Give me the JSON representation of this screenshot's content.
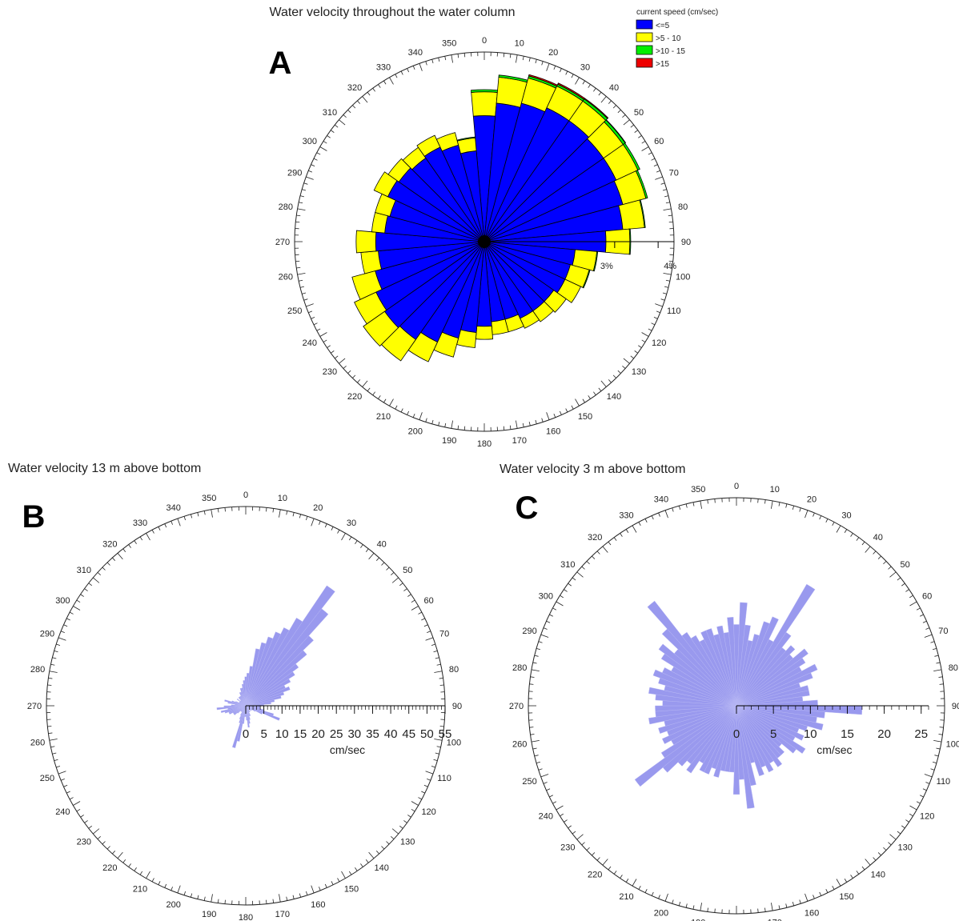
{
  "chart_data": [
    {
      "panel": "A",
      "type": "rose",
      "title": "Water velocity throughout the water column",
      "legend": {
        "title": "current speed (cm/sec)",
        "placement": "top-right",
        "items": [
          {
            "label": "<=5",
            "color": "#0000ff"
          },
          {
            "label": ">5 - 10",
            "color": "#ffff00"
          },
          {
            "label": ">10 - 15",
            "color": "#00ee00"
          },
          {
            "label": ">15",
            "color": "#ee0000"
          }
        ]
      },
      "direction_ticks": [
        "0",
        "10",
        "20",
        "30",
        "40",
        "50",
        "60",
        "70",
        "80",
        "90",
        "100",
        "110",
        "120",
        "130",
        "140",
        "150",
        "160",
        "170",
        "180",
        "190",
        "200",
        "210",
        "220",
        "230",
        "240",
        "250",
        "260",
        "270",
        "280",
        "290",
        "300",
        "310",
        "320",
        "330",
        "340",
        "350"
      ],
      "radial_labels": [
        "3%",
        "4%"
      ],
      "bin_width_deg": 10,
      "directions": [
        0,
        10,
        20,
        30,
        40,
        50,
        60,
        70,
        80,
        90,
        100,
        110,
        120,
        130,
        140,
        150,
        160,
        170,
        180,
        190,
        200,
        210,
        220,
        230,
        240,
        250,
        260,
        270,
        280,
        290,
        300,
        310,
        320,
        330,
        340,
        350
      ],
      "series": [
        {
          "name": "<=5",
          "color": "#0000ff",
          "values": [
            2.9,
            3.2,
            3.3,
            3.4,
            3.4,
            3.35,
            3.35,
            3.3,
            3.2,
            2.8,
            2.1,
            2.05,
            2.05,
            1.95,
            1.95,
            1.95,
            1.85,
            1.85,
            1.95,
            2.1,
            2.3,
            2.55,
            2.75,
            2.8,
            2.75,
            2.6,
            2.45,
            2.5,
            2.3,
            2.25,
            2.45,
            2.4,
            2.35,
            2.4,
            2.3,
            2.1
          ]
        },
        {
          "name": ">5 - 10",
          "color": "#ffff00",
          "values": [
            0.55,
            0.6,
            0.6,
            0.55,
            0.55,
            0.55,
            0.55,
            0.55,
            0.5,
            0.55,
            0.5,
            0.45,
            0.4,
            0.35,
            0.3,
            0.25,
            0.3,
            0.3,
            0.3,
            0.35,
            0.45,
            0.5,
            0.6,
            0.6,
            0.55,
            0.55,
            0.4,
            0.45,
            0.3,
            0.35,
            0.35,
            0.3,
            0.3,
            0.3,
            0.3,
            0.3
          ]
        },
        {
          "name": ">10 - 15",
          "color": "#00ee00",
          "values": [
            0.05,
            0.05,
            0.05,
            0.05,
            0.06,
            0.06,
            0.05,
            0.04,
            0.02,
            0.02,
            0.02,
            0.02,
            0.0,
            0.0,
            0.0,
            0.0,
            0.0,
            0.0,
            0.0,
            0.0,
            0.0,
            0.0,
            0.0,
            0.0,
            0.0,
            0.0,
            0.0,
            0.0,
            0.0,
            0.0,
            0.0,
            0.0,
            0.0,
            0.0,
            0.0,
            0.02
          ]
        },
        {
          "name": ">15",
          "color": "#ee0000",
          "values": [
            0.0,
            0.0,
            0.03,
            0.03,
            0.02,
            0.01,
            0.0,
            0.0,
            0.0,
            0.0,
            0.0,
            0.0,
            0.0,
            0.0,
            0.0,
            0.0,
            0.0,
            0.0,
            0.0,
            0.0,
            0.0,
            0.0,
            0.0,
            0.0,
            0.0,
            0.0,
            0.0,
            0.0,
            0.0,
            0.0,
            0.0,
            0.0,
            0.0,
            0.0,
            0.0,
            0.0
          ]
        }
      ],
      "rmax": 4.2
    },
    {
      "panel": "B",
      "type": "rose",
      "title": "Water velocity 13 m above bottom",
      "direction_ticks": [
        "0",
        "10",
        "20",
        "30",
        "40",
        "50",
        "60",
        "70",
        "80",
        "90",
        "100",
        "110",
        "120",
        "130",
        "140",
        "150",
        "160",
        "170",
        "180",
        "190",
        "200",
        "210",
        "220",
        "230",
        "240",
        "250",
        "260",
        "270",
        "280",
        "290",
        "300",
        "310",
        "320",
        "330",
        "340",
        "350"
      ],
      "radial_ticks": [
        "0",
        "5",
        "10",
        "15",
        "20",
        "25",
        "30",
        "35",
        "40",
        "45",
        "50",
        "55"
      ],
      "radial_unit": "cm/sec",
      "rmax": 55,
      "color": "#9999ee",
      "directions": [
        0,
        4,
        8,
        12,
        16,
        20,
        24,
        28,
        32,
        36,
        40,
        44,
        48,
        52,
        56,
        60,
        64,
        68,
        72,
        76,
        80,
        84,
        88,
        92,
        96,
        100,
        104,
        108,
        112,
        116,
        120,
        124,
        128,
        132,
        136,
        140,
        144,
        148,
        152,
        156,
        160,
        164,
        168,
        172,
        176,
        180,
        184,
        188,
        192,
        196,
        200,
        204,
        208,
        212,
        216,
        220,
        224,
        228,
        232,
        236,
        240,
        244,
        248,
        252,
        256,
        260,
        264,
        268,
        272,
        276,
        280,
        284,
        288,
        292,
        296,
        300,
        304,
        308,
        312,
        316,
        320,
        324,
        328,
        332,
        336,
        340,
        344,
        348,
        352,
        356
      ],
      "values": [
        8,
        9,
        11,
        16,
        18,
        20,
        22,
        24,
        28,
        40,
        34,
        26,
        22,
        18,
        16,
        14,
        12,
        13,
        11,
        10,
        8,
        7,
        5,
        4,
        4,
        4,
        5,
        8,
        10,
        5,
        3,
        2,
        2,
        2,
        1,
        1,
        2,
        2,
        2,
        3,
        3,
        4,
        5,
        6,
        4,
        3,
        3,
        5,
        10,
        12,
        5,
        4,
        3,
        2,
        2,
        2,
        2,
        3,
        4,
        4,
        4,
        5,
        5,
        6,
        7,
        5,
        8,
        6,
        4,
        3,
        5,
        6,
        4,
        3,
        2,
        2,
        2,
        3,
        2,
        2,
        3,
        3,
        3,
        3,
        4,
        4,
        5,
        5,
        6,
        7
      ],
      "bin_width_deg": 4
    },
    {
      "panel": "C",
      "type": "rose",
      "title": "Water velocity 3 m above bottom",
      "direction_ticks": [
        "0",
        "10",
        "20",
        "30",
        "40",
        "50",
        "60",
        "70",
        "80",
        "90",
        "100",
        "110",
        "120",
        "130",
        "140",
        "150",
        "160",
        "170",
        "180",
        "190",
        "200",
        "210",
        "220",
        "230",
        "240",
        "250",
        "260",
        "270",
        "280",
        "290",
        "300",
        "310",
        "320",
        "330",
        "340",
        "350"
      ],
      "radial_ticks": [
        "0",
        "5",
        "10",
        "15",
        "20",
        "25"
      ],
      "radial_unit": "cm/sec",
      "rmax": 26,
      "color": "#9999ee",
      "directions": [
        0,
        4,
        8,
        12,
        16,
        20,
        24,
        28,
        32,
        36,
        40,
        44,
        48,
        52,
        56,
        60,
        64,
        68,
        72,
        76,
        80,
        84,
        88,
        92,
        96,
        100,
        104,
        108,
        112,
        116,
        120,
        124,
        128,
        132,
        136,
        140,
        144,
        148,
        152,
        156,
        160,
        164,
        168,
        172,
        176,
        180,
        184,
        188,
        192,
        196,
        200,
        204,
        208,
        212,
        216,
        220,
        224,
        228,
        232,
        236,
        240,
        244,
        248,
        252,
        256,
        260,
        264,
        268,
        272,
        276,
        280,
        284,
        288,
        292,
        296,
        300,
        304,
        308,
        312,
        316,
        320,
        324,
        328,
        332,
        336,
        340,
        344,
        348,
        352,
        356
      ],
      "values": [
        11,
        14,
        11,
        9,
        10,
        12,
        13,
        10,
        19,
        12,
        10,
        11,
        10,
        12,
        11,
        10,
        12,
        11,
        9,
        10,
        10,
        9,
        11,
        17,
        12,
        11,
        12,
        10,
        9,
        10,
        9,
        11,
        10,
        8,
        9,
        9,
        10,
        9,
        10,
        9,
        10,
        8,
        11,
        14,
        10,
        12,
        9,
        9,
        9,
        10,
        9,
        10,
        10,
        9,
        11,
        10,
        11,
        13,
        17,
        12,
        10,
        11,
        10,
        11,
        10,
        12,
        11,
        11,
        10,
        11,
        12,
        10,
        11,
        12,
        11,
        10,
        12,
        13,
        11,
        14,
        18,
        12,
        11,
        10,
        11,
        11,
        10,
        11,
        10,
        12
      ],
      "bin_width_deg": 4
    }
  ],
  "panels": {
    "a": "A",
    "b": "B",
    "c": "C"
  }
}
